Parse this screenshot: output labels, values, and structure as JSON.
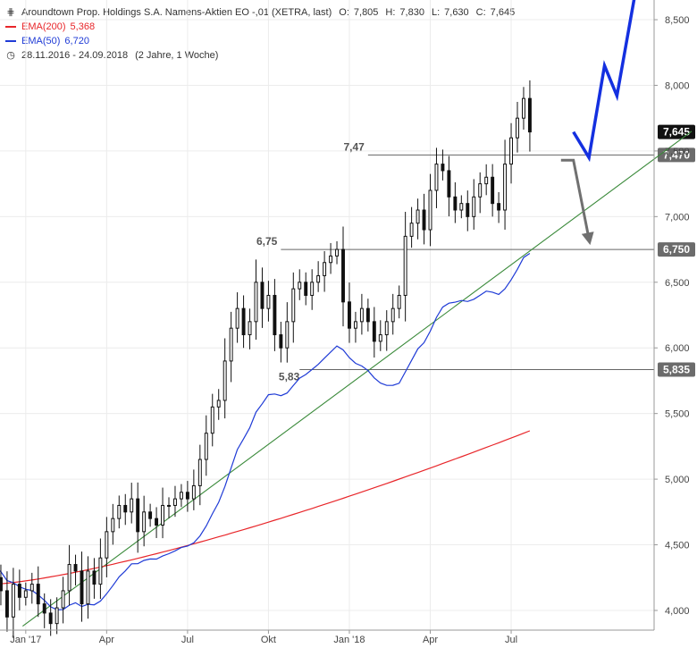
{
  "header": {
    "title": "Aroundtown Prop. Holdings S.A. Namens-Aktien EO -,01 (XETRA, last)",
    "ohlc": [
      {
        "label": "O:",
        "value": "7,805"
      },
      {
        "label": "H:",
        "value": "7,830"
      },
      {
        "label": "L:",
        "value": "7,630"
      },
      {
        "label": "C:",
        "value": "7,645"
      }
    ],
    "ema200": {
      "label": "EMA(200)",
      "value": "5,368",
      "color": "#e8262a"
    },
    "ema50": {
      "label": "EMA(50)",
      "value": "6,720",
      "color": "#1f3bd6"
    },
    "range": {
      "label": "28.11.2016 - 24.09.2018",
      "duration": "(2 Jahre, 1 Woche)"
    }
  },
  "chart_data": {
    "type": "candlestick",
    "ylim": [
      3.85,
      8.65
    ],
    "xlim": [
      0,
      112
    ],
    "y_ticks": [
      "4,000",
      "4,500",
      "5,000",
      "5,500",
      "6,000",
      "6,500",
      "7,000",
      "7,500",
      "8,000",
      "8,500"
    ],
    "y_tick_values": [
      4.0,
      4.5,
      5.0,
      5.5,
      6.0,
      6.5,
      7.0,
      7.5,
      8.0,
      8.5
    ],
    "x_ticks": [
      {
        "label": "Jan '17",
        "week": 5
      },
      {
        "label": "Apr",
        "week": 18
      },
      {
        "label": "Jul",
        "week": 31
      },
      {
        "label": "Okt",
        "week": 44
      },
      {
        "label": "Jan '18",
        "week": 57
      },
      {
        "label": "Apr",
        "week": 70
      },
      {
        "label": "Jul",
        "week": 83
      }
    ],
    "closes": [
      4.25,
      4.15,
      3.95,
      4.2,
      4.1,
      4.15,
      4.2,
      4.05,
      3.98,
      3.9,
      4.02,
      4.15,
      4.35,
      4.3,
      4.05,
      4.3,
      4.2,
      4.4,
      4.6,
      4.7,
      4.8,
      4.75,
      4.85,
      4.6,
      4.75,
      4.7,
      4.65,
      4.8,
      4.8,
      4.85,
      4.9,
      4.85,
      4.95,
      5.15,
      5.35,
      5.55,
      5.6,
      5.9,
      6.15,
      6.3,
      6.1,
      6.2,
      6.5,
      6.3,
      6.4,
      6.1,
      6.0,
      6.2,
      6.45,
      6.5,
      6.4,
      6.5,
      6.55,
      6.65,
      6.7,
      6.75,
      6.35,
      6.15,
      6.2,
      6.3,
      6.2,
      6.05,
      6.1,
      6.2,
      6.3,
      6.4,
      6.85,
      6.95,
      7.05,
      6.9,
      7.2,
      7.4,
      7.35,
      7.15,
      7.05,
      7.1,
      7.0,
      7.15,
      7.25,
      7.3,
      7.1,
      7.05,
      7.4,
      7.6,
      7.75,
      7.9,
      7.645
    ],
    "ema200_start": 4.2,
    "ema200_end": 5.368,
    "ema50_end": 6.72,
    "levels": [
      {
        "value": 7.47,
        "label": "7,47",
        "box": "7,470"
      },
      {
        "value": 6.75,
        "label": "6,75",
        "box": "6,750"
      },
      {
        "value": 5.835,
        "label": "5,83",
        "box": "5,835"
      }
    ],
    "last_price": {
      "value": 7.645,
      "box": "7,645"
    },
    "trendline": [
      {
        "week": 4.5,
        "value": 3.88
      },
      {
        "week": 112,
        "value": 7.65
      }
    ],
    "bull_path": [
      {
        "week": 93,
        "value": 7.645
      },
      {
        "week": 95.5,
        "value": 7.45
      },
      {
        "week": 98,
        "value": 8.15
      },
      {
        "week": 100,
        "value": 7.92
      },
      {
        "week": 103,
        "value": 8.72
      }
    ],
    "bear_path": [
      {
        "week": 91,
        "value": 7.43
      },
      {
        "week": 93,
        "value": 7.43
      },
      {
        "week": 95.5,
        "value": 6.83
      }
    ]
  }
}
